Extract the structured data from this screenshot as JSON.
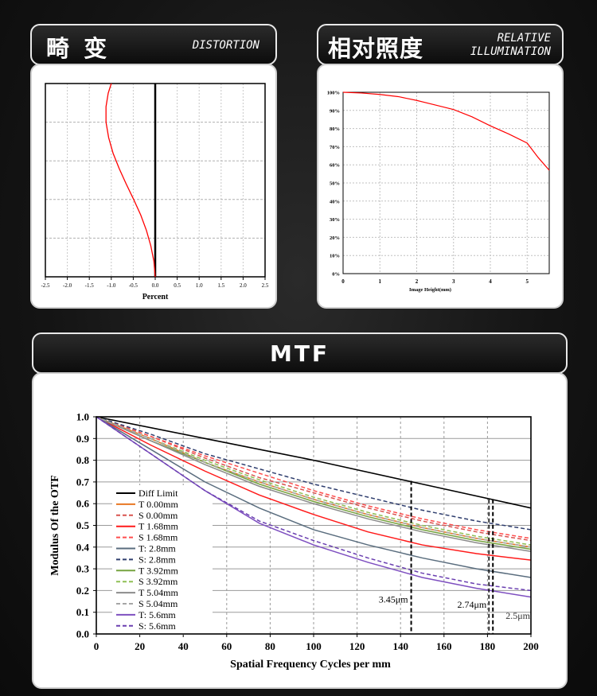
{
  "distortion": {
    "title_cn": "畸 变",
    "title_en": "DISTORTION",
    "chart_data": {
      "type": "line",
      "xlabel": "Percent",
      "xlim": [
        -2.5,
        2.5
      ],
      "x_ticks": [
        "-2.5",
        "-2.0",
        "-1.5",
        "-1.0",
        "-0.5",
        "0.0",
        "0.5",
        "1.0",
        "1.5",
        "2.0",
        "2.5"
      ],
      "grid": true,
      "series": [
        {
          "color": "#ff0000",
          "points": [
            [
              -1.0,
              1.0
            ],
            [
              -1.07,
              0.95
            ],
            [
              -1.12,
              0.88
            ],
            [
              -1.12,
              0.8
            ],
            [
              -1.06,
              0.72
            ],
            [
              -0.96,
              0.64
            ],
            [
              -0.82,
              0.56
            ],
            [
              -0.66,
              0.48
            ],
            [
              -0.49,
              0.4
            ],
            [
              -0.33,
              0.32
            ],
            [
              -0.2,
              0.24
            ],
            [
              -0.1,
              0.16
            ],
            [
              -0.03,
              0.08
            ],
            [
              0.0,
              0.0
            ]
          ]
        }
      ]
    }
  },
  "illumination": {
    "title_cn": "相对照度",
    "title_en_1": "RELATIVE",
    "title_en_2": "ILLUMINATION",
    "chart_data": {
      "type": "line",
      "xlabel": "Image Height(mm)",
      "xlim": [
        0,
        5.6
      ],
      "ylim": [
        0,
        100
      ],
      "x_ticks": [
        "0",
        "1",
        "2",
        "3",
        "4",
        "5"
      ],
      "y_ticks": [
        "0%",
        "10%",
        "20%",
        "30%",
        "40%",
        "50%",
        "60%",
        "70%",
        "80%",
        "90%",
        "100%"
      ],
      "grid": true,
      "series": [
        {
          "color": "#ff0000",
          "points": [
            [
              0,
              100
            ],
            [
              0.5,
              99.6
            ],
            [
              1,
              98.8
            ],
            [
              1.5,
              97.6
            ],
            [
              2,
              95.5
            ],
            [
              2.5,
              93
            ],
            [
              3,
              90.5
            ],
            [
              3.5,
              86.5
            ],
            [
              4,
              81.5
            ],
            [
              4.5,
              77
            ],
            [
              5,
              72
            ],
            [
              5.3,
              64
            ],
            [
              5.6,
              57
            ]
          ]
        }
      ]
    }
  },
  "mtf": {
    "title": "MTF",
    "chart_data": {
      "type": "line",
      "xlabel": "Spatial Frequency Cycles per mm",
      "ylabel": "Modulus Of the OTF",
      "xlim": [
        0,
        200
      ],
      "ylim": [
        0,
        1
      ],
      "x_ticks": [
        "0",
        "20",
        "40",
        "60",
        "80",
        "100",
        "120",
        "140",
        "160",
        "180",
        "200"
      ],
      "y_ticks": [
        "0.0",
        "0.1",
        "0.2",
        "0.3",
        "0.4",
        "0.5",
        "0.6",
        "0.7",
        "0.8",
        "0.9",
        "1.0"
      ],
      "grid": true,
      "legend_position": "left-center",
      "annotations": [
        {
          "text": "3.45μm",
          "x": 144.9
        },
        {
          "text": "2.74μm",
          "x": 182.5
        },
        {
          "text": "2.5μm",
          "x": 200
        }
      ],
      "series": [
        {
          "name": "Diff Limit",
          "color": "#000000",
          "dashed": false,
          "points": [
            [
              0,
              1
            ],
            [
              50,
              0.9
            ],
            [
              100,
              0.8
            ],
            [
              150,
              0.69
            ],
            [
              200,
              0.58
            ]
          ]
        },
        {
          "name": "T 0.00mm",
          "color": "#e87722",
          "dashed": false,
          "points": [
            [
              0,
              1
            ],
            [
              25,
              0.9
            ],
            [
              50,
              0.79
            ],
            [
              75,
              0.7
            ],
            [
              100,
              0.62
            ],
            [
              125,
              0.55
            ],
            [
              150,
              0.49
            ],
            [
              175,
              0.44
            ],
            [
              200,
              0.4
            ]
          ]
        },
        {
          "name": "S 0.00mm",
          "color": "#d9534f",
          "dashed": true,
          "points": [
            [
              0,
              1
            ],
            [
              25,
              0.91
            ],
            [
              50,
              0.81
            ],
            [
              75,
              0.72
            ],
            [
              100,
              0.65
            ],
            [
              125,
              0.58
            ],
            [
              150,
              0.52
            ],
            [
              175,
              0.47
            ],
            [
              200,
              0.43
            ]
          ]
        },
        {
          "name": "T 1.68mm",
          "color": "#ff1a1a",
          "dashed": false,
          "points": [
            [
              0,
              1
            ],
            [
              25,
              0.87
            ],
            [
              50,
              0.75
            ],
            [
              75,
              0.64
            ],
            [
              100,
              0.55
            ],
            [
              125,
              0.47
            ],
            [
              150,
              0.41
            ],
            [
              175,
              0.37
            ],
            [
              200,
              0.34
            ]
          ]
        },
        {
          "name": "S 1.68mm",
          "color": "#ff4d4d",
          "dashed": true,
          "points": [
            [
              0,
              1
            ],
            [
              25,
              0.91
            ],
            [
              50,
              0.82
            ],
            [
              75,
              0.74
            ],
            [
              100,
              0.66
            ],
            [
              125,
              0.59
            ],
            [
              150,
              0.53
            ],
            [
              175,
              0.48
            ],
            [
              200,
              0.44
            ]
          ]
        },
        {
          "name": "T: 2.8mm",
          "color": "#5a6d7e",
          "dashed": false,
          "points": [
            [
              0,
              1
            ],
            [
              25,
              0.85
            ],
            [
              50,
              0.7
            ],
            [
              75,
              0.58
            ],
            [
              100,
              0.48
            ],
            [
              125,
              0.41
            ],
            [
              150,
              0.35
            ],
            [
              175,
              0.3
            ],
            [
              200,
              0.26
            ]
          ]
        },
        {
          "name": "S: 2.8mm",
          "color": "#2f3e6e",
          "dashed": true,
          "points": [
            [
              0,
              1
            ],
            [
              25,
              0.92
            ],
            [
              50,
              0.83
            ],
            [
              75,
              0.76
            ],
            [
              100,
              0.69
            ],
            [
              125,
              0.63
            ],
            [
              150,
              0.57
            ],
            [
              175,
              0.52
            ],
            [
              200,
              0.48
            ]
          ]
        },
        {
          "name": "T 3.92mm",
          "color": "#76a340",
          "dashed": false,
          "points": [
            [
              0,
              1
            ],
            [
              25,
              0.89
            ],
            [
              50,
              0.79
            ],
            [
              75,
              0.69
            ],
            [
              100,
              0.61
            ],
            [
              125,
              0.54
            ],
            [
              150,
              0.48
            ],
            [
              175,
              0.43
            ],
            [
              200,
              0.39
            ]
          ]
        },
        {
          "name": "S 3.92mm",
          "color": "#8fbf55",
          "dashed": true,
          "points": [
            [
              0,
              1
            ],
            [
              25,
              0.9
            ],
            [
              50,
              0.8
            ],
            [
              75,
              0.71
            ],
            [
              100,
              0.63
            ],
            [
              125,
              0.56
            ],
            [
              150,
              0.5
            ],
            [
              175,
              0.45
            ],
            [
              200,
              0.41
            ]
          ]
        },
        {
          "name": "T 5.04mm",
          "color": "#8c8c8c",
          "dashed": false,
          "points": [
            [
              0,
              1
            ],
            [
              25,
              0.89
            ],
            [
              50,
              0.78
            ],
            [
              75,
              0.68
            ],
            [
              100,
              0.6
            ],
            [
              125,
              0.53
            ],
            [
              150,
              0.47
            ],
            [
              175,
              0.42
            ],
            [
              200,
              0.38
            ]
          ]
        },
        {
          "name": "S 5.04mm",
          "color": "#a6a6a6",
          "dashed": true,
          "points": [
            [
              0,
              1
            ],
            [
              25,
              0.9
            ],
            [
              50,
              0.79
            ],
            [
              75,
              0.7
            ],
            [
              100,
              0.62
            ],
            [
              125,
              0.55
            ],
            [
              150,
              0.49
            ],
            [
              175,
              0.44
            ],
            [
              200,
              0.4
            ]
          ]
        },
        {
          "name": "T: 5.6mm",
          "color": "#7e4fc0",
          "dashed": false,
          "points": [
            [
              0,
              1
            ],
            [
              25,
              0.83
            ],
            [
              50,
              0.66
            ],
            [
              75,
              0.51
            ],
            [
              100,
              0.41
            ],
            [
              125,
              0.33
            ],
            [
              150,
              0.26
            ],
            [
              175,
              0.21
            ],
            [
              200,
              0.17
            ]
          ]
        },
        {
          "name": "S: 5.6mm",
          "color": "#6a3fb0",
          "dashed": true,
          "points": [
            [
              0,
              1
            ],
            [
              25,
              0.83
            ],
            [
              50,
              0.66
            ],
            [
              75,
              0.52
            ],
            [
              100,
              0.43
            ],
            [
              125,
              0.35
            ],
            [
              150,
              0.28
            ],
            [
              175,
              0.23
            ],
            [
              200,
              0.2
            ]
          ]
        }
      ]
    }
  }
}
